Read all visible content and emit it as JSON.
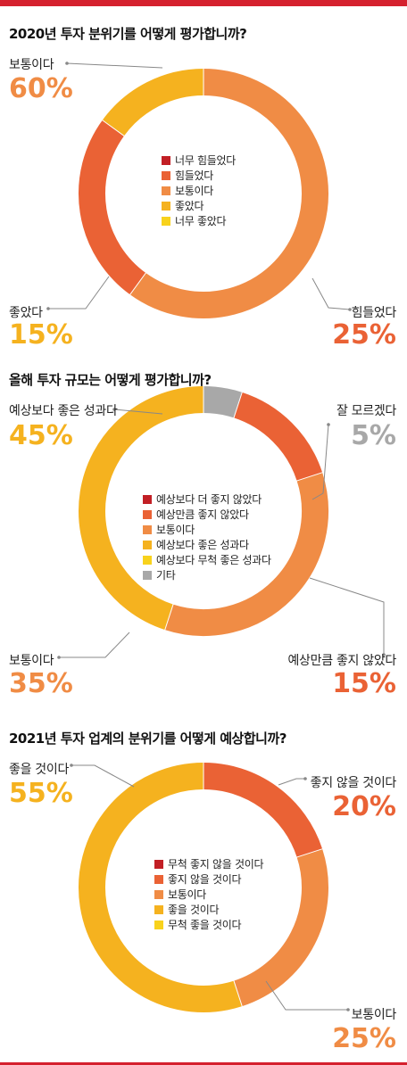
{
  "colors": {
    "accent_bar": "#d5212e",
    "c_darkred": "#c21f25",
    "c_redorange": "#ea6235",
    "c_orange": "#f08c45",
    "c_amber": "#f5b21f",
    "c_yellow": "#f8d21c",
    "c_gray": "#a8a8a8"
  },
  "chart_data": [
    {
      "type": "pie",
      "title": "2020년 투자 분위기를 어떻게 평가합니까?",
      "legend": [
        "너무 힘들었다",
        "힘들었다",
        "보통이다",
        "좋았다",
        "너무 좋았다"
      ],
      "legend_colors": [
        "#c21f25",
        "#ea6235",
        "#f08c45",
        "#f5b21f",
        "#f8d21c"
      ],
      "slices": [
        {
          "label": "보통이다",
          "value": 60,
          "pct_text": "60%",
          "color": "#f08c45",
          "pct_color": "#f08c45"
        },
        {
          "label": "힘들었다",
          "value": 25,
          "pct_text": "25%",
          "color": "#ea6235",
          "pct_color": "#ea6235"
        },
        {
          "label": "좋았다",
          "value": 15,
          "pct_text": "15%",
          "color": "#f5b21f",
          "pct_color": "#f5b21f"
        }
      ]
    },
    {
      "type": "pie",
      "title": "올해 투자 규모는 어떻게 평가합니까?",
      "legend": [
        "예상보다 더 좋지 않았다",
        "예상만큼 좋지 않았다",
        "보통이다",
        "예상보다 좋은 성과다",
        "예상보다 무척 좋은 성과다",
        "기타"
      ],
      "legend_colors": [
        "#c21f25",
        "#ea6235",
        "#f08c45",
        "#f5b21f",
        "#f8d21c",
        "#a8a8a8"
      ],
      "slices": [
        {
          "label": "잘 모르겠다",
          "value": 5,
          "pct_text": "5%",
          "color": "#a8a8a8",
          "pct_color": "#a8a8a8"
        },
        {
          "label": "예상만큼 좋지 않았다",
          "value": 15,
          "pct_text": "15%",
          "color": "#ea6235",
          "pct_color": "#ea6235"
        },
        {
          "label": "보통이다",
          "value": 35,
          "pct_text": "35%",
          "color": "#f08c45",
          "pct_color": "#f08c45"
        },
        {
          "label": "예상보다 좋은 성과다",
          "value": 45,
          "pct_text": "45%",
          "color": "#f5b21f",
          "pct_color": "#f5b21f"
        }
      ]
    },
    {
      "type": "pie",
      "title": "2021년 투자 업계의 분위기를 어떻게 예상합니까?",
      "legend": [
        "무척 좋지 않을 것이다",
        "좋지 않을 것이다",
        "보통이다",
        "좋을 것이다",
        "무척 좋을 것이다"
      ],
      "legend_colors": [
        "#c21f25",
        "#ea6235",
        "#f08c45",
        "#f5b21f",
        "#f8d21c"
      ],
      "slices": [
        {
          "label": "좋지 않을 것이다",
          "value": 20,
          "pct_text": "20%",
          "color": "#ea6235",
          "pct_color": "#ea6235"
        },
        {
          "label": "보통이다",
          "value": 25,
          "pct_text": "25%",
          "color": "#f08c45",
          "pct_color": "#f08c45"
        },
        {
          "label": "좋을 것이다",
          "value": 55,
          "pct_text": "55%",
          "color": "#f5b21f",
          "pct_color": "#f5b21f"
        }
      ]
    }
  ]
}
